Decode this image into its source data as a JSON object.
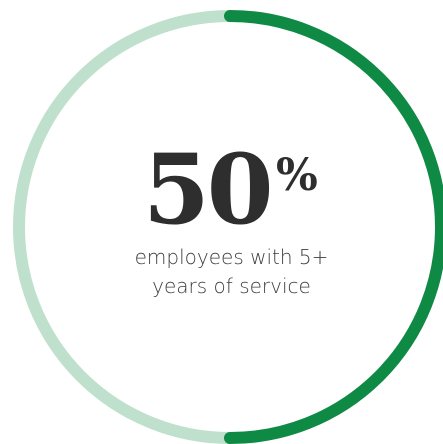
{
  "chart_data": {
    "type": "pie",
    "style": "ring",
    "title": "",
    "value": 50,
    "unit": "%",
    "max": 100,
    "caption_lines": [
      "employees with 5+",
      "years of service"
    ],
    "series": [
      {
        "value": 50,
        "color": "#0f8a45"
      },
      {
        "value": 50,
        "color": "#bfe0cc"
      }
    ]
  }
}
